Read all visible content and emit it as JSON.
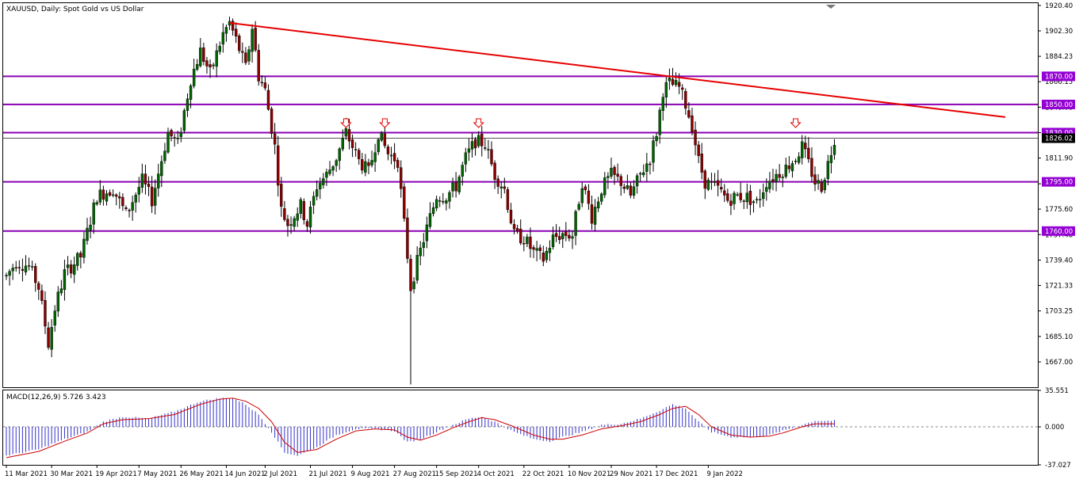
{
  "header": {
    "title": "XAUUSD, Daily:  Spot Gold vs US Dollar",
    "indicator_title": "MACD(12,26,9) 5.726 3.423"
  },
  "colors": {
    "background": "#ffffff",
    "frame": "#000000",
    "bull_candle": "#006400",
    "bear_candle": "#8b0000",
    "candle_wick": "#000000",
    "level_line": "#8b00b3",
    "level_label_bg": "#9400d3",
    "trendline": "#e60000",
    "arrow": "#e60000",
    "macd_histogram": "#3333cc",
    "macd_signal": "#cc0000",
    "current_price_line": "#555555"
  },
  "chart_data": [
    {
      "type": "candlestick",
      "name": "price",
      "title": "XAUUSD, Daily:  Spot Gold vs US Dollar",
      "ylim": [
        1649,
        1922
      ],
      "y_ticks": [
        "1920.40",
        "1902.30",
        "1884.23",
        "1866.15",
        "1848.08",
        "1830.00",
        "1811.90",
        "1793.60",
        "1775.60",
        "1757.48",
        "1739.40",
        "1721.33",
        "1703.25",
        "1685.10",
        "1667.00"
      ],
      "x_ticks": [
        "11 Mar 2021",
        "30 Mar 2021",
        "19 Apr 2021",
        "7 May 2021",
        "26 May 2021",
        "14 Jun 2021",
        "2 Jul 2021",
        "21 Jul 2021",
        "9 Aug 2021",
        "27 Aug 2021",
        "15 Sep 2021",
        "4 Oct 2021",
        "22 Oct 2021",
        "10 Nov 2021",
        "29 Nov 2021",
        "17 Dec 2021",
        "9 Jan 2022"
      ],
      "current_price": "1826.02",
      "horizontal_levels": [
        "1870.00",
        "1850.00",
        "1830.00",
        "1795.00",
        "1760.00"
      ],
      "trendline": {
        "from": [
          "26 May 2021",
          1908
        ],
        "to": [
          "9 Jan 2022+",
          1840
        ]
      },
      "arrow_markers": [
        "early Jul 2021",
        "mid Jul 2021",
        "late Aug 2021",
        "mid Dec 2021"
      ],
      "path_anchors": [
        [
          0,
          1728
        ],
        [
          3,
          1738
        ],
        [
          7,
          1735
        ],
        [
          10,
          1720
        ],
        [
          13,
          1680
        ],
        [
          15,
          1705
        ],
        [
          18,
          1730
        ],
        [
          23,
          1742
        ],
        [
          28,
          1785
        ],
        [
          33,
          1790
        ],
        [
          37,
          1772
        ],
        [
          42,
          1796
        ],
        [
          45,
          1782
        ],
        [
          50,
          1830
        ],
        [
          53,
          1822
        ],
        [
          57,
          1868
        ],
        [
          60,
          1888
        ],
        [
          63,
          1872
        ],
        [
          67,
          1900
        ],
        [
          69,
          1908
        ],
        [
          71,
          1896
        ],
        [
          74,
          1876
        ],
        [
          76,
          1905
        ],
        [
          78,
          1870
        ],
        [
          80,
          1860
        ],
        [
          83,
          1820
        ],
        [
          85,
          1775
        ],
        [
          87,
          1765
        ],
        [
          91,
          1778
        ],
        [
          93,
          1765
        ],
        [
          96,
          1792
        ],
        [
          99,
          1800
        ],
        [
          102,
          1812
        ],
        [
          105,
          1830
        ],
        [
          109,
          1810
        ],
        [
          112,
          1802
        ],
        [
          115,
          1830
        ],
        [
          118,
          1815
        ],
        [
          121,
          1810
        ],
        [
          123,
          1765
        ],
        [
          125,
          1720
        ],
        [
          127,
          1738
        ],
        [
          130,
          1762
        ],
        [
          133,
          1785
        ],
        [
          136,
          1785
        ],
        [
          139,
          1792
        ],
        [
          142,
          1812
        ],
        [
          145,
          1824
        ],
        [
          148,
          1822
        ],
        [
          151,
          1800
        ],
        [
          154,
          1790
        ],
        [
          157,
          1757
        ],
        [
          160,
          1755
        ],
        [
          163,
          1745
        ],
        [
          166,
          1740
        ],
        [
          169,
          1755
        ],
        [
          172,
          1758
        ],
        [
          175,
          1757
        ],
        [
          178,
          1795
        ],
        [
          181,
          1770
        ],
        [
          184,
          1790
        ],
        [
          187,
          1800
        ],
        [
          190,
          1795
        ],
        [
          193,
          1785
        ],
        [
          196,
          1800
        ],
        [
          199,
          1812
        ],
        [
          201,
          1830
        ],
        [
          203,
          1860
        ],
        [
          205,
          1865
        ],
        [
          208,
          1862
        ],
        [
          210,
          1850
        ],
        [
          212,
          1835
        ],
        [
          214,
          1810
        ],
        [
          216,
          1795
        ],
        [
          220,
          1790
        ],
        [
          223,
          1782
        ],
        [
          226,
          1785
        ],
        [
          229,
          1784
        ],
        [
          232,
          1780
        ],
        [
          235,
          1795
        ],
        [
          238,
          1800
        ],
        [
          241,
          1805
        ],
        [
          244,
          1812
        ],
        [
          246,
          1820
        ],
        [
          248,
          1808
        ],
        [
          250,
          1795
        ],
        [
          252,
          1792
        ],
        [
          254,
          1808
        ],
        [
          256,
          1826
        ]
      ]
    },
    {
      "type": "histogram+line",
      "name": "MACD(12,26,9)",
      "ylim": [
        -37.027,
        35.551
      ],
      "y_ticks": [
        "35.551",
        "0.000",
        "-37.027"
      ],
      "macd_last": 5.726,
      "signal_last": 3.423,
      "macd_anchors": [
        [
          0,
          -28
        ],
        [
          10,
          -22
        ],
        [
          18,
          -12
        ],
        [
          25,
          -5
        ],
        [
          30,
          5
        ],
        [
          36,
          10
        ],
        [
          44,
          8
        ],
        [
          52,
          15
        ],
        [
          60,
          25
        ],
        [
          66,
          28
        ],
        [
          70,
          28
        ],
        [
          74,
          22
        ],
        [
          78,
          12
        ],
        [
          82,
          -5
        ],
        [
          86,
          -25
        ],
        [
          90,
          -28
        ],
        [
          96,
          -20
        ],
        [
          102,
          -8
        ],
        [
          108,
          -2
        ],
        [
          114,
          -2
        ],
        [
          120,
          -4
        ],
        [
          124,
          -15
        ],
        [
          128,
          -12
        ],
        [
          133,
          -5
        ],
        [
          138,
          2
        ],
        [
          143,
          8
        ],
        [
          147,
          10
        ],
        [
          151,
          5
        ],
        [
          157,
          -5
        ],
        [
          163,
          -12
        ],
        [
          168,
          -14
        ],
        [
          172,
          -10
        ],
        [
          178,
          -5
        ],
        [
          184,
          2
        ],
        [
          190,
          3
        ],
        [
          196,
          8
        ],
        [
          202,
          16
        ],
        [
          206,
          22
        ],
        [
          210,
          18
        ],
        [
          214,
          5
        ],
        [
          218,
          -5
        ],
        [
          224,
          -10
        ],
        [
          230,
          -10
        ],
        [
          236,
          -8
        ],
        [
          240,
          -4
        ],
        [
          246,
          2
        ],
        [
          250,
          6
        ],
        [
          256,
          6
        ]
      ],
      "signal_anchors": [
        [
          0,
          -30
        ],
        [
          10,
          -24
        ],
        [
          18,
          -14
        ],
        [
          25,
          -6
        ],
        [
          30,
          3
        ],
        [
          36,
          7
        ],
        [
          44,
          8
        ],
        [
          52,
          12
        ],
        [
          60,
          22
        ],
        [
          66,
          27
        ],
        [
          70,
          28
        ],
        [
          74,
          25
        ],
        [
          78,
          18
        ],
        [
          82,
          5
        ],
        [
          86,
          -15
        ],
        [
          90,
          -25
        ],
        [
          96,
          -22
        ],
        [
          102,
          -12
        ],
        [
          108,
          -4
        ],
        [
          114,
          -2
        ],
        [
          120,
          -3
        ],
        [
          124,
          -10
        ],
        [
          128,
          -13
        ],
        [
          133,
          -8
        ],
        [
          138,
          -1
        ],
        [
          143,
          5
        ],
        [
          147,
          9
        ],
        [
          151,
          7
        ],
        [
          157,
          0
        ],
        [
          163,
          -8
        ],
        [
          168,
          -12
        ],
        [
          172,
          -12
        ],
        [
          178,
          -8
        ],
        [
          184,
          -2
        ],
        [
          190,
          1
        ],
        [
          196,
          5
        ],
        [
          202,
          12
        ],
        [
          206,
          18
        ],
        [
          210,
          20
        ],
        [
          214,
          12
        ],
        [
          218,
          0
        ],
        [
          224,
          -8
        ],
        [
          230,
          -10
        ],
        [
          236,
          -9
        ],
        [
          240,
          -6
        ],
        [
          246,
          0
        ],
        [
          250,
          3
        ],
        [
          256,
          3
        ]
      ]
    }
  ]
}
